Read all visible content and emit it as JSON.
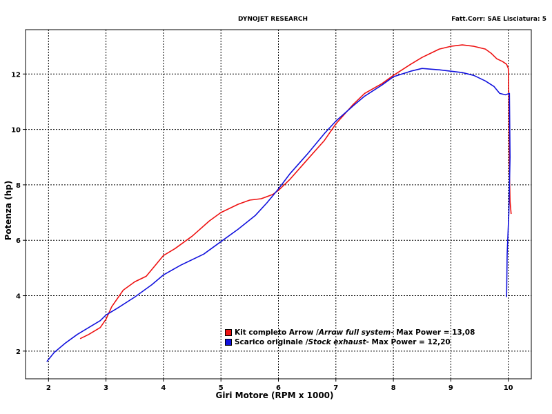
{
  "header": {
    "center": "DYNOJET RESEARCH",
    "right": "Fatt.Corr: SAE  Lisciatura: 5"
  },
  "colors": {
    "red": "#ee1111",
    "blue": "#1111dd",
    "grid": "#000000"
  },
  "legend": [
    {
      "color": "#ee1111",
      "text_a": "Kit completo Arrow / ",
      "text_b": "Arrow full system",
      "text_c": " - Max Power = 13,08"
    },
    {
      "color": "#1111dd",
      "text_a": "Scarico originale / ",
      "text_b": "Stock exhaust",
      "text_c": " - Max Power = 12,20"
    }
  ],
  "chart_data": {
    "type": "line",
    "title": "",
    "xlabel": "Giri Motore (RPM x 1000)",
    "ylabel": "Potenza (hp)",
    "xlim": [
      1.6,
      10.4
    ],
    "ylim": [
      1.0,
      13.6
    ],
    "xticks": [
      2,
      3,
      4,
      5,
      6,
      7,
      8,
      9,
      10
    ],
    "yticks": [
      2,
      4,
      6,
      8,
      10,
      12
    ],
    "grid": true,
    "legend_placement": "bottom-center",
    "series": [
      {
        "name": "Kit completo Arrow / Arrow full system",
        "color": "#ee1111",
        "x": [
          2.55,
          2.7,
          2.9,
          3.0,
          3.1,
          3.3,
          3.5,
          3.7,
          3.9,
          4.0,
          4.2,
          4.5,
          4.8,
          5.0,
          5.3,
          5.5,
          5.7,
          5.9,
          6.0,
          6.2,
          6.5,
          6.8,
          7.0,
          7.3,
          7.5,
          7.8,
          8.0,
          8.3,
          8.5,
          8.8,
          9.0,
          9.2,
          9.4,
          9.6,
          9.7,
          9.8,
          9.9,
          9.97,
          10.0,
          10.01,
          10.02,
          10.03,
          10.05
        ],
        "y": [
          2.45,
          2.6,
          2.85,
          3.15,
          3.6,
          4.2,
          4.5,
          4.7,
          5.2,
          5.45,
          5.7,
          6.15,
          6.7,
          7.0,
          7.3,
          7.45,
          7.5,
          7.65,
          7.8,
          8.2,
          8.9,
          9.6,
          10.2,
          10.9,
          11.3,
          11.65,
          11.95,
          12.35,
          12.6,
          12.9,
          13.0,
          13.05,
          13.0,
          12.9,
          12.75,
          12.55,
          12.45,
          12.35,
          12.2,
          11.0,
          8.5,
          7.4,
          6.95
        ]
      },
      {
        "name": "Scarico originale / Stock exhaust",
        "color": "#1111dd",
        "x": [
          1.97,
          2.1,
          2.3,
          2.5,
          2.7,
          2.9,
          3.0,
          3.2,
          3.5,
          3.8,
          4.0,
          4.3,
          4.7,
          5.0,
          5.3,
          5.6,
          5.8,
          6.0,
          6.2,
          6.5,
          6.8,
          7.0,
          7.3,
          7.5,
          7.8,
          8.0,
          8.3,
          8.5,
          8.8,
          9.0,
          9.2,
          9.4,
          9.6,
          9.75,
          9.85,
          9.95,
          10.02,
          10.03,
          10.01,
          9.98,
          9.97
        ],
        "y": [
          1.62,
          1.95,
          2.3,
          2.6,
          2.85,
          3.1,
          3.3,
          3.55,
          3.95,
          4.4,
          4.75,
          5.1,
          5.5,
          5.95,
          6.4,
          6.9,
          7.35,
          7.85,
          8.4,
          9.1,
          9.85,
          10.3,
          10.85,
          11.2,
          11.6,
          11.9,
          12.1,
          12.2,
          12.15,
          12.1,
          12.05,
          11.95,
          11.75,
          11.55,
          11.3,
          11.25,
          11.3,
          9.0,
          7.0,
          5.5,
          3.95
        ]
      }
    ]
  }
}
